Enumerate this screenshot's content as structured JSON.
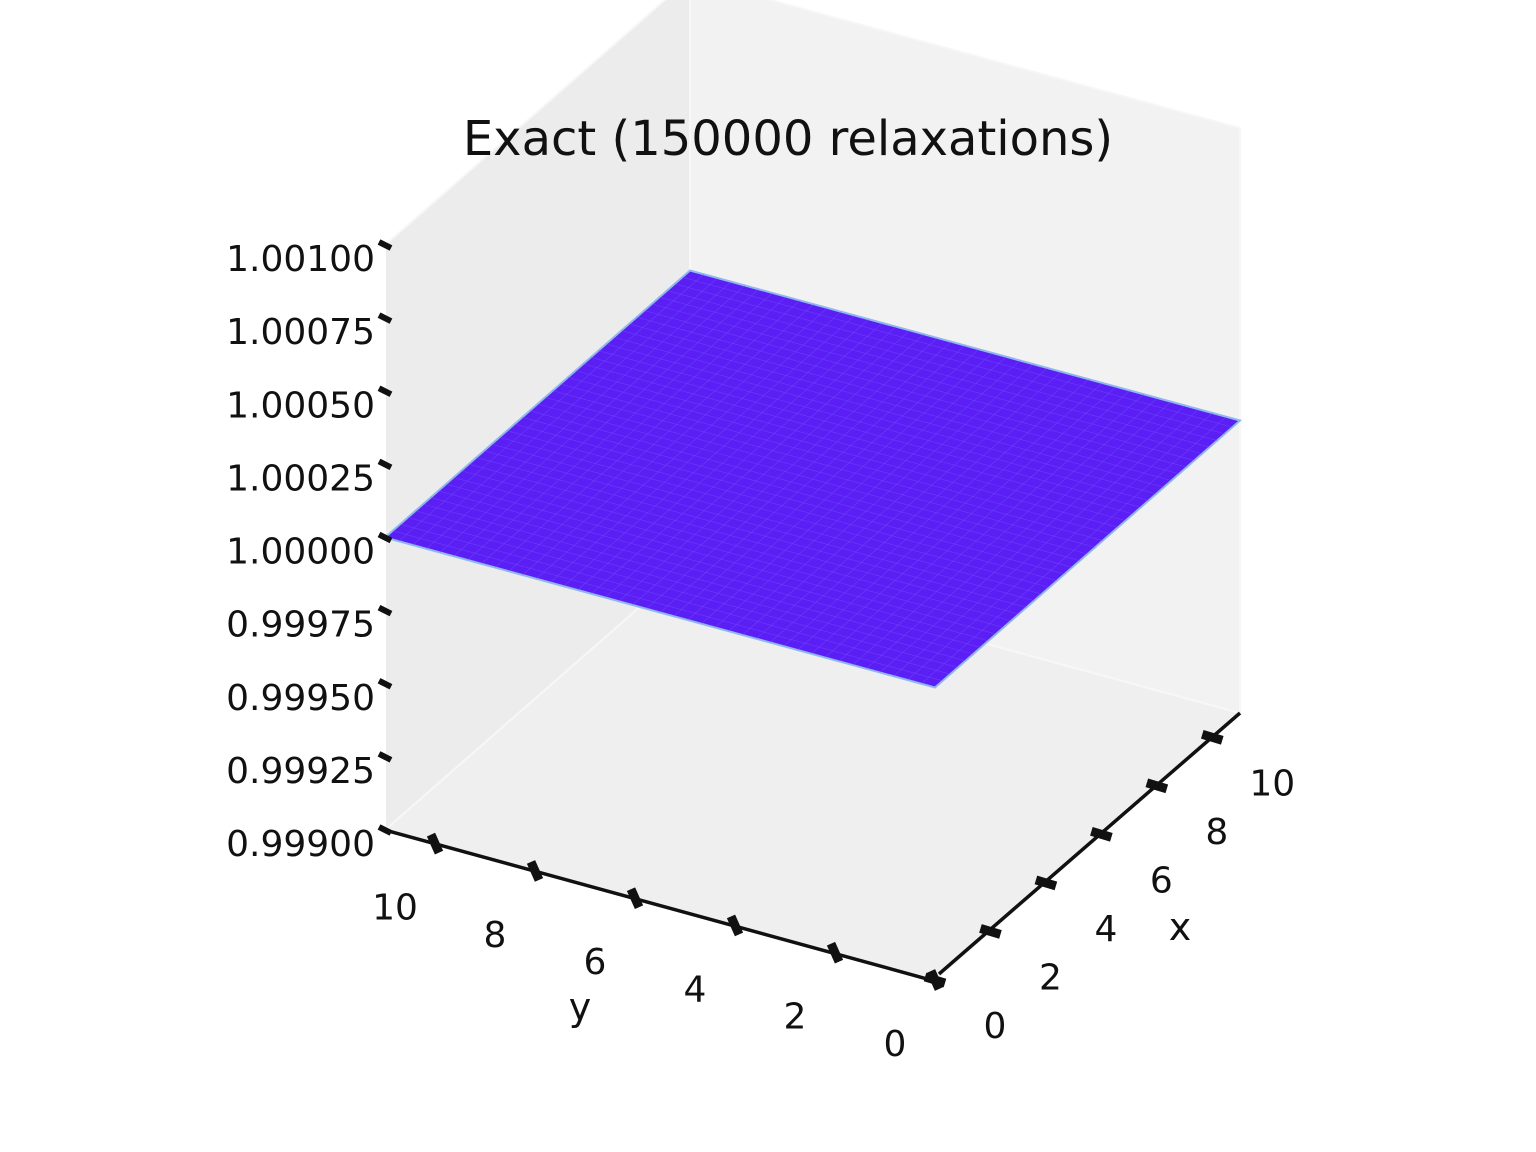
{
  "chart_data": {
    "type": "surface3d",
    "title": "Exact (150000 relaxations)",
    "xlabel": "x",
    "ylabel": "y",
    "zlabel": "",
    "xlim": [
      0,
      11
    ],
    "ylim": [
      0,
      11
    ],
    "zlim": [
      0.999,
      1.001
    ],
    "x_ticks": [
      "0",
      "2",
      "4",
      "6",
      "8",
      "10"
    ],
    "y_ticks": [
      "0",
      "2",
      "4",
      "6",
      "8",
      "10"
    ],
    "z_ticks": [
      "0.99900",
      "0.99925",
      "0.99950",
      "0.99975",
      "1.00000",
      "1.00025",
      "1.00050",
      "1.00075",
      "1.00100"
    ],
    "surface": {
      "x_range": [
        0,
        11
      ],
      "y_range": [
        0,
        11
      ],
      "z_value": 1.0,
      "color": "#5b1ff5",
      "edge_color": "#8fb7f0"
    },
    "grid": false,
    "colors": {
      "pane_back": "#f2f2f2",
      "pane_side": "#ececec",
      "pane_floor": "#efefef",
      "axis_line": "#111111"
    }
  }
}
